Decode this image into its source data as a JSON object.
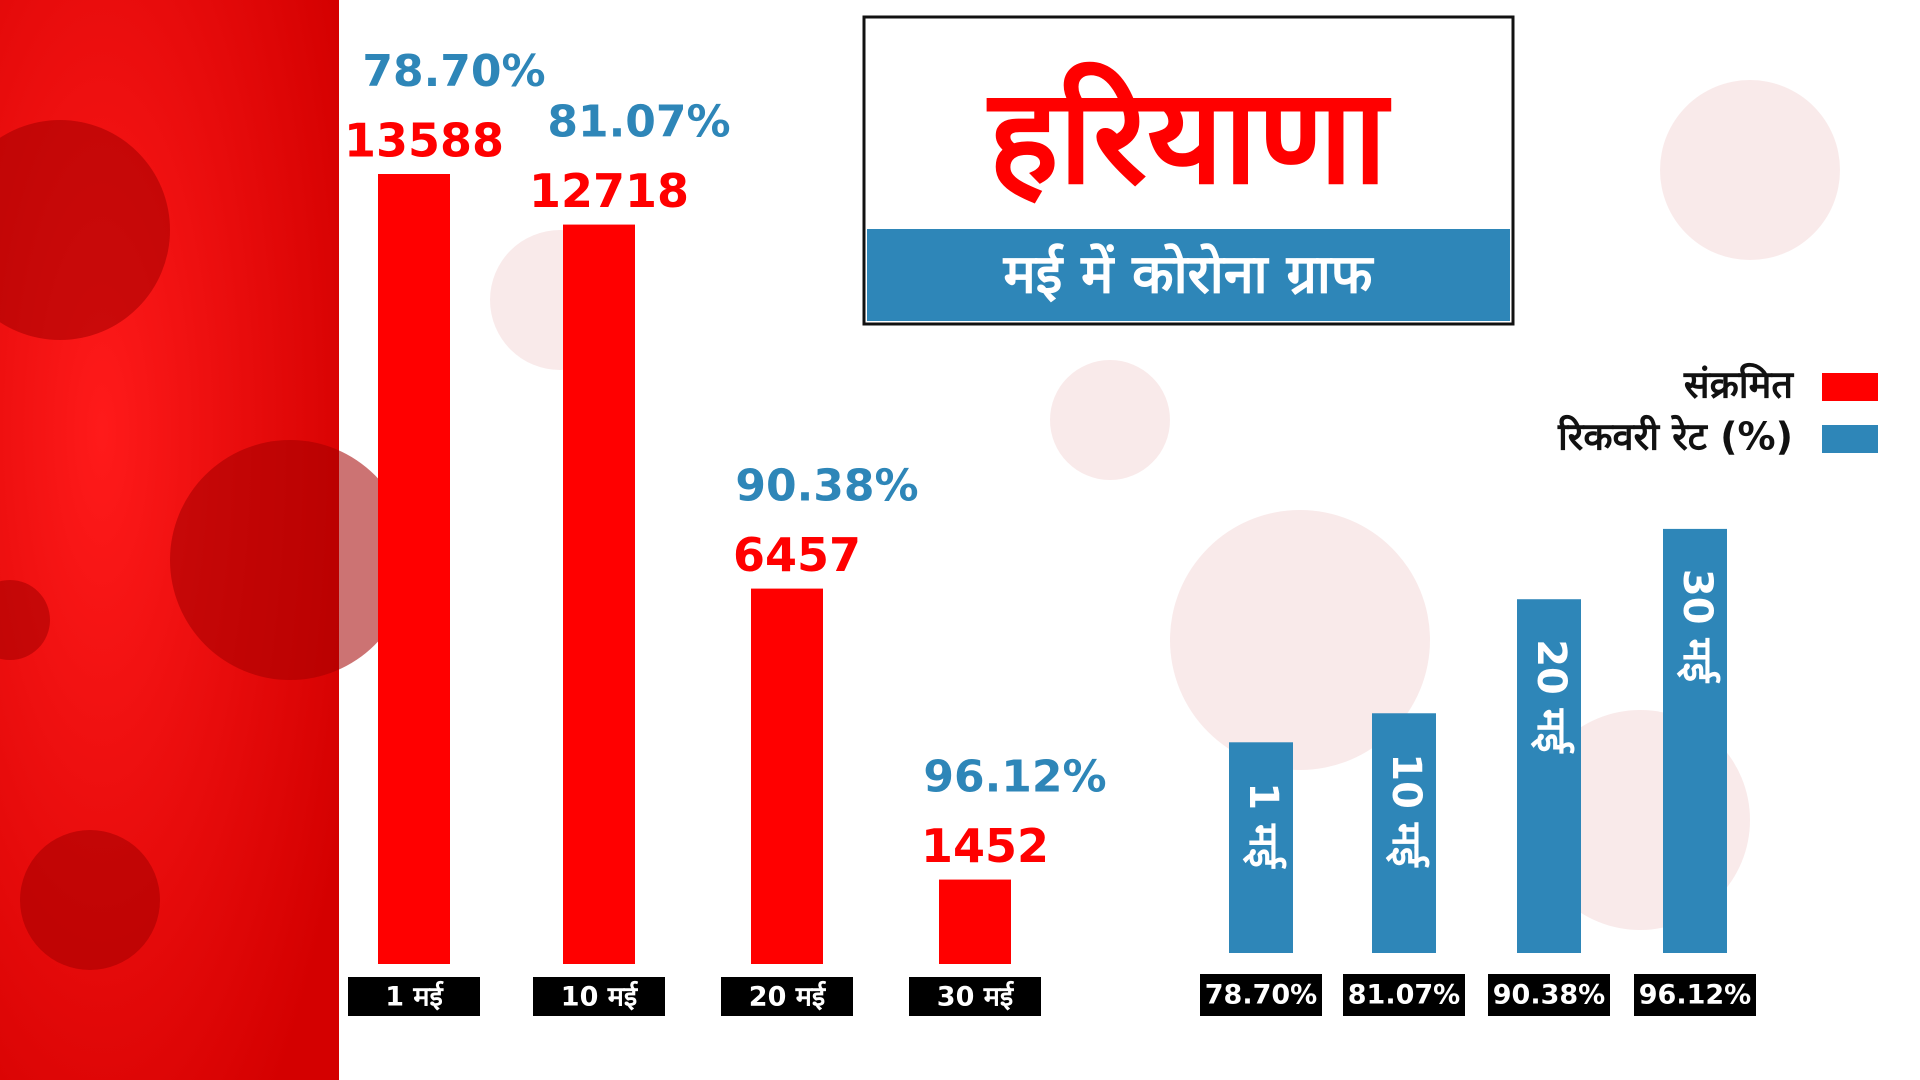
{
  "chart_data": {
    "type": "bar",
    "title": "हरियाणा",
    "subtitle": "मई में कोरोना ग्राफ",
    "categories": [
      "1 मई",
      "10 मई",
      "20 मई",
      "30 मई"
    ],
    "series": [
      {
        "name": "संक्रमित",
        "color": "#ff0000",
        "values": [
          13588,
          12718,
          6457,
          1452
        ]
      },
      {
        "name": "रिकवरी रेट (%)",
        "color": "#2e86b8",
        "values": [
          78.7,
          81.07,
          90.38,
          96.12
        ],
        "value_labels": [
          "78.70%",
          "81.07%",
          "90.38%",
          "96.12%"
        ]
      }
    ]
  }
}
